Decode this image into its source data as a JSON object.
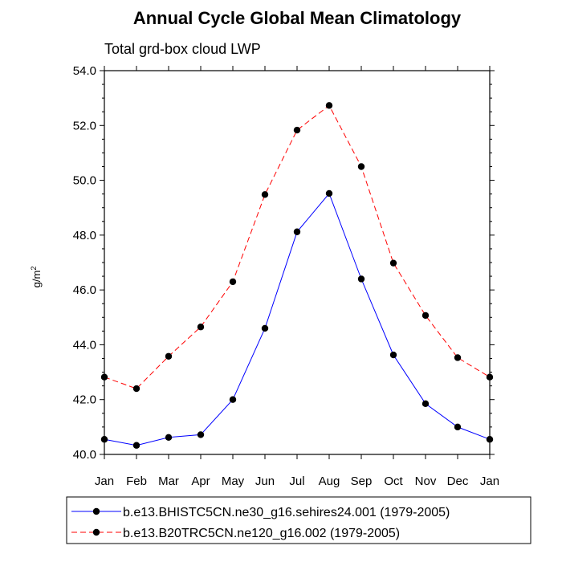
{
  "chart_data": {
    "type": "line",
    "title": "Annual Cycle Global Mean Climatology",
    "subtitle": "Total grd-box cloud LWP",
    "xlabel": "",
    "ylabel": "g/m",
    "ylabel_superscript": "2",
    "categories": [
      "Jan",
      "Feb",
      "Mar",
      "Apr",
      "May",
      "Jun",
      "Jul",
      "Aug",
      "Sep",
      "Oct",
      "Nov",
      "Dec",
      "Jan"
    ],
    "ylim": [
      40.0,
      54.0
    ],
    "yticks": [
      40.0,
      42.0,
      44.0,
      46.0,
      48.0,
      50.0,
      52.0,
      54.0
    ],
    "ytick_labels": [
      "40.0",
      "42.0",
      "44.0",
      "46.0",
      "48.0",
      "50.0",
      "52.0",
      "54.0"
    ],
    "grid": false,
    "legend_position": "bottom",
    "series": [
      {
        "name": "b.e13.BHISTC5CN.ne30_g16.sehires24.001 (1979-2005)",
        "color": "#0000ff",
        "dash": "solid",
        "marker_color": "#000000",
        "values": [
          40.55,
          40.33,
          40.62,
          40.72,
          42.0,
          44.6,
          48.12,
          49.52,
          46.4,
          43.63,
          41.85,
          41.0,
          40.55
        ]
      },
      {
        "name": "b.e13.B20TRC5CN.ne120_g16.002 (1979-2005)",
        "color": "#ff0000",
        "dash": "dashed",
        "marker_color": "#000000",
        "values": [
          42.82,
          42.4,
          43.58,
          44.65,
          46.3,
          49.48,
          51.83,
          52.73,
          50.5,
          46.98,
          45.07,
          43.53,
          42.82
        ]
      }
    ]
  }
}
